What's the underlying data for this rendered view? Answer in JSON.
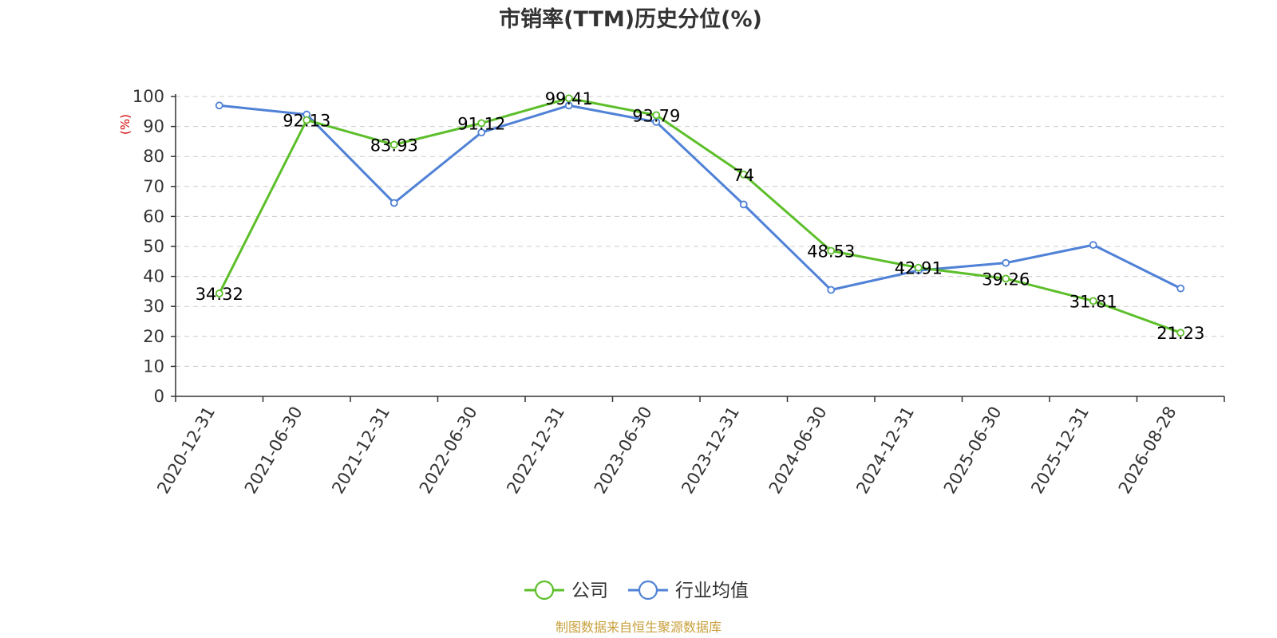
{
  "chart_data": {
    "type": "line",
    "title": "市销率(TTM)历史分位(%)",
    "ylabel": "(%)",
    "ylim": [
      0,
      100
    ],
    "yticks": [
      0,
      10,
      20,
      30,
      40,
      50,
      60,
      70,
      80,
      90,
      100
    ],
    "categories": [
      "2020-12-31",
      "2021-06-30",
      "2021-12-31",
      "2022-06-30",
      "2022-12-31",
      "2023-06-30",
      "2023-12-31",
      "2024-06-30",
      "2024-12-31",
      "2025-06-30",
      "2025-12-31",
      "2026-08-28"
    ],
    "series": [
      {
        "name": "公司",
        "color": "#5cbf2a",
        "values": [
          34.32,
          92.13,
          83.93,
          91.12,
          99.41,
          93.79,
          74,
          48.53,
          42.91,
          39.26,
          31.81,
          21.23
        ],
        "labels": [
          "34.32",
          "92.13",
          "83.93",
          "91.12",
          "99.41",
          "93.79",
          "74",
          "48.53",
          "42.91",
          "39.26",
          "31.81",
          "21.23"
        ]
      },
      {
        "name": "行业均值",
        "color": "#4f81d6",
        "values": [
          97,
          94,
          64.5,
          88,
          97,
          91.5,
          64,
          35.5,
          42,
          44.5,
          50.5,
          36
        ]
      }
    ],
    "grid": true,
    "legend": "bottom-center"
  },
  "source": "制图数据来自恒生聚源数据库"
}
